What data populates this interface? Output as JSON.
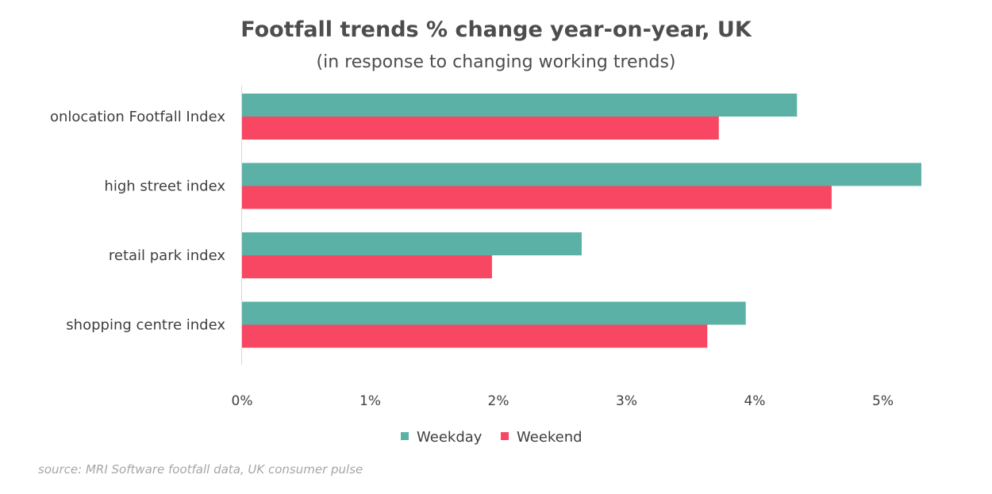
{
  "chart_data": {
    "type": "bar",
    "orientation": "horizontal",
    "title": "Footfall trends % change year-on-year, UK",
    "subtitle": "(in response to changing working trends)",
    "categories": [
      "onlocation Footfall Index",
      "high street index",
      "retail park index",
      "shopping centre index"
    ],
    "series": [
      {
        "name": "Weekday",
        "color": "#5bb1a6",
        "values": [
          4.33,
          5.3,
          2.65,
          3.93
        ]
      },
      {
        "name": "Weekend",
        "color": "#f74762",
        "values": [
          3.72,
          4.6,
          1.95,
          3.63
        ]
      }
    ],
    "xlim": [
      0,
      5
    ],
    "x_ticks": [
      0,
      1,
      2,
      3,
      4,
      5
    ],
    "x_tick_labels": [
      "0%",
      "1%",
      "2%",
      "3%",
      "4%",
      "5%"
    ],
    "grid": false,
    "legend_position": "bottom",
    "source": "source: MRI Software footfall data, UK consumer pulse"
  }
}
